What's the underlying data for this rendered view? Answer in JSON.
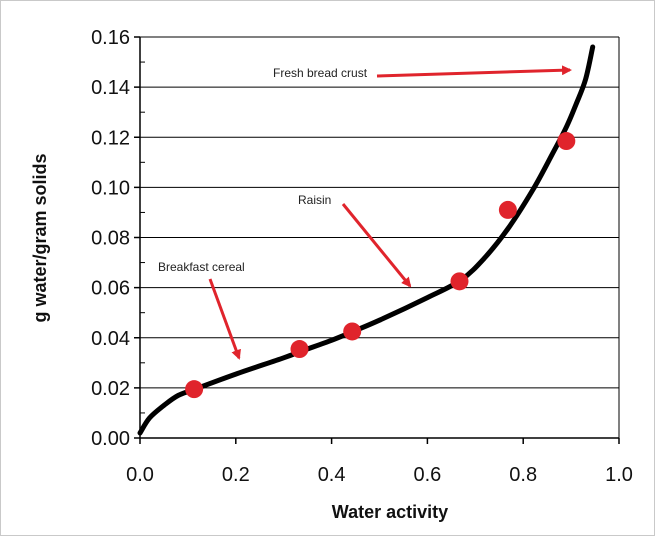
{
  "chart_data": {
    "type": "scatter",
    "title": "",
    "xlabel": "Water activity",
    "ylabel": "g water/gram solids",
    "xlim": [
      0,
      1.0
    ],
    "ylim": [
      0,
      0.16
    ],
    "x_ticks": [
      "0.0",
      "0.2",
      "0.4",
      "0.6",
      "0.8",
      "1.0"
    ],
    "y_ticks": [
      "0.00",
      "0.02",
      "0.04",
      "0.06",
      "0.08",
      "0.10",
      "0.12",
      "0.14",
      "0.16"
    ],
    "grid": "horizontal",
    "curve": {
      "x": [
        0.0,
        0.02,
        0.05,
        0.08,
        0.115,
        0.2,
        0.3,
        0.335,
        0.4,
        0.445,
        0.5,
        0.6,
        0.67,
        0.72,
        0.77,
        0.82,
        0.86,
        0.89,
        0.91,
        0.93,
        0.945
      ],
      "y": [
        0.002,
        0.008,
        0.013,
        0.017,
        0.0195,
        0.0255,
        0.032,
        0.0345,
        0.039,
        0.0425,
        0.047,
        0.056,
        0.063,
        0.072,
        0.084,
        0.099,
        0.113,
        0.124,
        0.133,
        0.143,
        0.156
      ]
    },
    "points": {
      "x": [
        0.113,
        0.333,
        0.443,
        0.667,
        0.768,
        0.89
      ],
      "y": [
        0.0195,
        0.0355,
        0.0425,
        0.0625,
        0.091,
        0.1185
      ]
    },
    "annotations": [
      {
        "label": "Breakfast cereal",
        "arrow_to": [
          0.19,
          0.031
        ]
      },
      {
        "label": "Raisin",
        "arrow_to": [
          0.55,
          0.06
        ]
      },
      {
        "label": "Fresh bread crust",
        "arrow_to": [
          0.91,
          0.147
        ]
      }
    ],
    "colors": {
      "curve": "#000000",
      "points": "#e0242c",
      "arrows": "#e0242c",
      "grid": "#000000"
    }
  }
}
